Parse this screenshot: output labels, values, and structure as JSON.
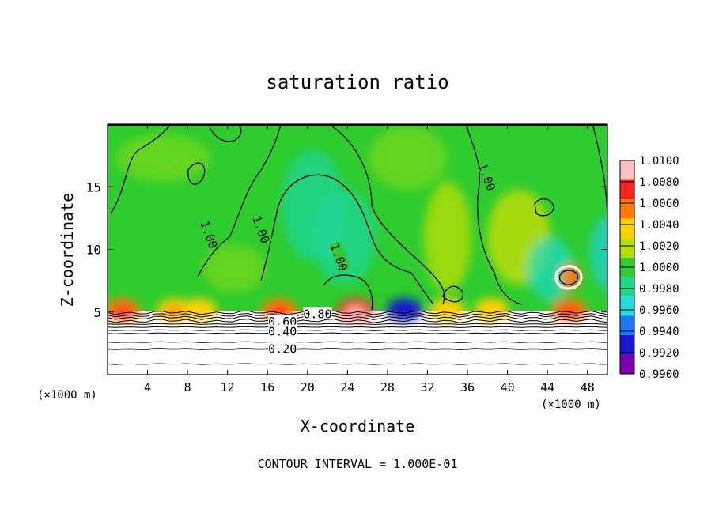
{
  "chart_data": {
    "type": "heatmap",
    "title": "saturation ratio",
    "xlabel": "X-coordinate",
    "ylabel": "Z-coordinate",
    "x_unit": "(×1000 m)",
    "x_unit_right": "(×1000 m)",
    "xlim": [
      0,
      50
    ],
    "ylim": [
      0,
      20
    ],
    "x_ticks": [
      4,
      8,
      12,
      16,
      20,
      24,
      28,
      32,
      36,
      40,
      44,
      48
    ],
    "x_tick_labels": [
      "4",
      "8",
      "12",
      "16",
      "20",
      "24",
      "28",
      "32",
      "36",
      "40",
      "44",
      "48"
    ],
    "y_ticks": [
      5,
      10,
      15
    ],
    "y_tick_labels": [
      "5",
      "10",
      "15"
    ],
    "footer": "CONTOUR INTERVAL = 1.000E-01",
    "colorbar": {
      "levels": [
        "1.0100",
        "1.0080",
        "1.0060",
        "1.0040",
        "1.0020",
        "1.0000",
        "0.9980",
        "0.9960",
        "0.9940",
        "0.9920",
        "0.9900"
      ],
      "colors": [
        "#ffbfbf",
        "#ff2020",
        "#ff7a00",
        "#ffd000",
        "#b8e000",
        "#33cc33",
        "#22d88a",
        "#22dede",
        "#1e78ff",
        "#1818d0",
        "#7a00b0"
      ]
    },
    "contour_labels": [
      {
        "text": "1.00",
        "x": 10.2,
        "z": 11.2
      },
      {
        "text": "1.00",
        "x": 15.4,
        "z": 11.6
      },
      {
        "text": "1.00",
        "x": 23.2,
        "z": 9.4
      },
      {
        "text": "1.00",
        "x": 38.0,
        "z": 15.8
      },
      {
        "text": "0.80",
        "x": 21.0,
        "z": 4.9
      },
      {
        "text": "0.60",
        "x": 17.5,
        "z": 4.3
      },
      {
        "text": "0.40",
        "x": 17.5,
        "z": 3.5
      },
      {
        "text": "0.20",
        "x": 17.5,
        "z": 2.1
      }
    ],
    "surface_hotspots": [
      {
        "x": 1.5,
        "value": 1.006
      },
      {
        "x": 6.7,
        "value": 1.005
      },
      {
        "x": 9.2,
        "value": 1.004
      },
      {
        "x": 17.2,
        "value": 1.006
      },
      {
        "x": 24.8,
        "value": 1.008
      },
      {
        "x": 29.7,
        "value": 0.992
      },
      {
        "x": 34.0,
        "value": 1.004
      },
      {
        "x": 38.4,
        "value": 1.004
      },
      {
        "x": 46.2,
        "value": 1.006
      }
    ]
  }
}
